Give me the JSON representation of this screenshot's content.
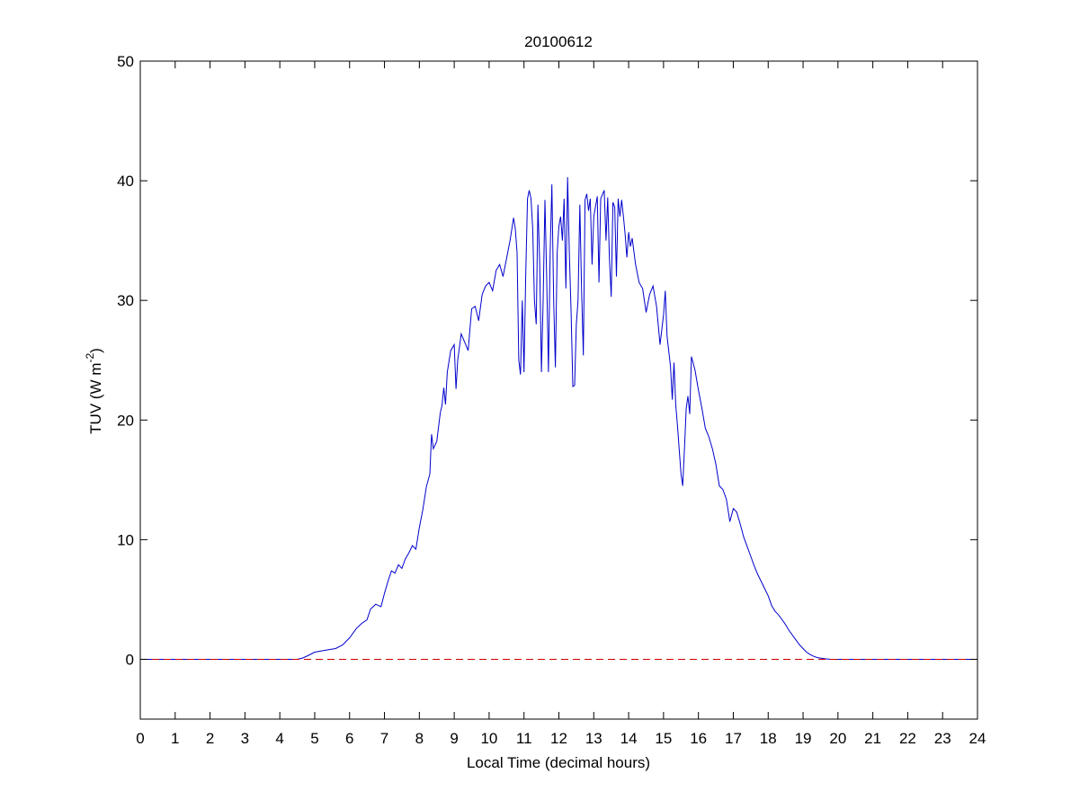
{
  "chart_data": {
    "type": "line",
    "title": "20100612",
    "xlabel": "Local Time (decimal hours)",
    "ylabel_main": "TUV (W m",
    "ylabel_sup": "-2",
    "ylabel_close": ")",
    "xlim": [
      0,
      24
    ],
    "ylim": [
      -5,
      50
    ],
    "xticks": [
      0,
      1,
      2,
      3,
      4,
      5,
      6,
      7,
      8,
      9,
      10,
      11,
      12,
      13,
      14,
      15,
      16,
      17,
      18,
      19,
      20,
      21,
      22,
      23,
      24
    ],
    "yticks": [
      0,
      10,
      20,
      30,
      40,
      50
    ],
    "grid": false,
    "series": [
      {
        "color": "#0000cc",
        "style": "solid",
        "points": [
          [
            0,
            0
          ],
          [
            4.5,
            0
          ],
          [
            4.65,
            0.1
          ],
          [
            4.8,
            0.3
          ],
          [
            5.0,
            0.6
          ],
          [
            5.2,
            0.7
          ],
          [
            5.4,
            0.8
          ],
          [
            5.6,
            0.9
          ],
          [
            5.8,
            1.2
          ],
          [
            6.0,
            1.8
          ],
          [
            6.2,
            2.6
          ],
          [
            6.35,
            3.0
          ],
          [
            6.5,
            3.3
          ],
          [
            6.6,
            4.2
          ],
          [
            6.75,
            4.6
          ],
          [
            6.9,
            4.4
          ],
          [
            7.0,
            5.5
          ],
          [
            7.1,
            6.5
          ],
          [
            7.2,
            7.4
          ],
          [
            7.3,
            7.2
          ],
          [
            7.4,
            7.9
          ],
          [
            7.5,
            7.6
          ],
          [
            7.6,
            8.4
          ],
          [
            7.7,
            8.9
          ],
          [
            7.8,
            9.5
          ],
          [
            7.9,
            9.2
          ],
          [
            8.0,
            11.0
          ],
          [
            8.1,
            12.5
          ],
          [
            8.2,
            14.4
          ],
          [
            8.3,
            15.5
          ],
          [
            8.35,
            18.8
          ],
          [
            8.4,
            17.6
          ],
          [
            8.5,
            18.2
          ],
          [
            8.6,
            20.6
          ],
          [
            8.65,
            21.2
          ],
          [
            8.7,
            22.7
          ],
          [
            8.75,
            21.3
          ],
          [
            8.8,
            24.0
          ],
          [
            8.9,
            25.8
          ],
          [
            9.0,
            26.3
          ],
          [
            9.05,
            22.6
          ],
          [
            9.1,
            25.0
          ],
          [
            9.2,
            27.2
          ],
          [
            9.3,
            26.5
          ],
          [
            9.4,
            25.8
          ],
          [
            9.5,
            29.3
          ],
          [
            9.6,
            29.5
          ],
          [
            9.7,
            28.3
          ],
          [
            9.8,
            30.5
          ],
          [
            9.9,
            31.2
          ],
          [
            10.0,
            31.5
          ],
          [
            10.1,
            30.8
          ],
          [
            10.2,
            32.5
          ],
          [
            10.3,
            33.0
          ],
          [
            10.4,
            32.0
          ],
          [
            10.5,
            33.5
          ],
          [
            10.6,
            35.0
          ],
          [
            10.7,
            36.9
          ],
          [
            10.75,
            36.0
          ],
          [
            10.8,
            34.0
          ],
          [
            10.85,
            25.0
          ],
          [
            10.9,
            23.8
          ],
          [
            10.95,
            30.0
          ],
          [
            11.0,
            24.0
          ],
          [
            11.05,
            32.0
          ],
          [
            11.1,
            38.5
          ],
          [
            11.15,
            39.2
          ],
          [
            11.2,
            38.5
          ],
          [
            11.25,
            36.0
          ],
          [
            11.3,
            30.0
          ],
          [
            11.35,
            28.0
          ],
          [
            11.4,
            38.0
          ],
          [
            11.45,
            33.0
          ],
          [
            11.5,
            24.0
          ],
          [
            11.55,
            30.0
          ],
          [
            11.6,
            38.4
          ],
          [
            11.65,
            32.0
          ],
          [
            11.7,
            24.0
          ],
          [
            11.75,
            34.0
          ],
          [
            11.8,
            39.7
          ],
          [
            11.85,
            30.0
          ],
          [
            11.9,
            24.4
          ],
          [
            11.95,
            34.0
          ],
          [
            12.0,
            36.2
          ],
          [
            12.05,
            37.0
          ],
          [
            12.1,
            35.0
          ],
          [
            12.15,
            38.5
          ],
          [
            12.2,
            31.0
          ],
          [
            12.25,
            40.3
          ],
          [
            12.3,
            34.0
          ],
          [
            12.35,
            29.0
          ],
          [
            12.4,
            22.8
          ],
          [
            12.45,
            22.9
          ],
          [
            12.5,
            28.0
          ],
          [
            12.55,
            30.0
          ],
          [
            12.6,
            38.0
          ],
          [
            12.65,
            31.0
          ],
          [
            12.7,
            25.4
          ],
          [
            12.75,
            38.4
          ],
          [
            12.8,
            38.9
          ],
          [
            12.85,
            37.5
          ],
          [
            12.9,
            38.5
          ],
          [
            12.95,
            33.0
          ],
          [
            13.0,
            37.0
          ],
          [
            13.1,
            38.7
          ],
          [
            13.15,
            31.5
          ],
          [
            13.2,
            38.5
          ],
          [
            13.3,
            39.2
          ],
          [
            13.35,
            35.0
          ],
          [
            13.4,
            38.6
          ],
          [
            13.45,
            33.5
          ],
          [
            13.5,
            30.3
          ],
          [
            13.55,
            38.2
          ],
          [
            13.6,
            37.8
          ],
          [
            13.65,
            32.0
          ],
          [
            13.7,
            38.5
          ],
          [
            13.75,
            37.0
          ],
          [
            13.8,
            38.4
          ],
          [
            13.85,
            37.0
          ],
          [
            13.9,
            35.5
          ],
          [
            13.95,
            33.6
          ],
          [
            14.0,
            35.7
          ],
          [
            14.05,
            34.5
          ],
          [
            14.1,
            35.2
          ],
          [
            14.2,
            33.0
          ],
          [
            14.3,
            31.5
          ],
          [
            14.4,
            31.0
          ],
          [
            14.5,
            29.0
          ],
          [
            14.6,
            30.5
          ],
          [
            14.7,
            31.2
          ],
          [
            14.8,
            29.5
          ],
          [
            14.9,
            26.3
          ],
          [
            15.0,
            28.8
          ],
          [
            15.05,
            30.8
          ],
          [
            15.1,
            27.0
          ],
          [
            15.2,
            24.5
          ],
          [
            15.25,
            21.7
          ],
          [
            15.3,
            24.8
          ],
          [
            15.35,
            21.2
          ],
          [
            15.4,
            19.5
          ],
          [
            15.5,
            15.5
          ],
          [
            15.55,
            14.5
          ],
          [
            15.6,
            17.5
          ],
          [
            15.65,
            21.0
          ],
          [
            15.7,
            22.0
          ],
          [
            15.75,
            20.5
          ],
          [
            15.8,
            25.3
          ],
          [
            15.9,
            24.2
          ],
          [
            16.0,
            22.5
          ],
          [
            16.1,
            21.0
          ],
          [
            16.2,
            19.3
          ],
          [
            16.3,
            18.6
          ],
          [
            16.4,
            17.6
          ],
          [
            16.5,
            16.3
          ],
          [
            16.6,
            14.5
          ],
          [
            16.7,
            14.2
          ],
          [
            16.8,
            13.4
          ],
          [
            16.85,
            12.5
          ],
          [
            16.9,
            11.5
          ],
          [
            17.0,
            12.6
          ],
          [
            17.1,
            12.3
          ],
          [
            17.2,
            11.3
          ],
          [
            17.3,
            10.2
          ],
          [
            17.4,
            9.4
          ],
          [
            17.5,
            8.6
          ],
          [
            17.6,
            7.8
          ],
          [
            17.7,
            7.1
          ],
          [
            17.8,
            6.5
          ],
          [
            17.9,
            5.9
          ],
          [
            18.0,
            5.3
          ],
          [
            18.1,
            4.5
          ],
          [
            18.2,
            4.0
          ],
          [
            18.3,
            3.7
          ],
          [
            18.4,
            3.3
          ],
          [
            18.5,
            2.9
          ],
          [
            18.6,
            2.4
          ],
          [
            18.7,
            2.0
          ],
          [
            18.8,
            1.6
          ],
          [
            18.9,
            1.2
          ],
          [
            19.0,
            0.9
          ],
          [
            19.1,
            0.6
          ],
          [
            19.2,
            0.4
          ],
          [
            19.3,
            0.25
          ],
          [
            19.4,
            0.15
          ],
          [
            19.5,
            0.1
          ],
          [
            19.6,
            0.05
          ],
          [
            19.8,
            0
          ],
          [
            24,
            0
          ]
        ]
      },
      {
        "color": "#cc0000",
        "style": "dashed",
        "points": [
          [
            0,
            0
          ],
          [
            24,
            0
          ]
        ]
      }
    ]
  }
}
